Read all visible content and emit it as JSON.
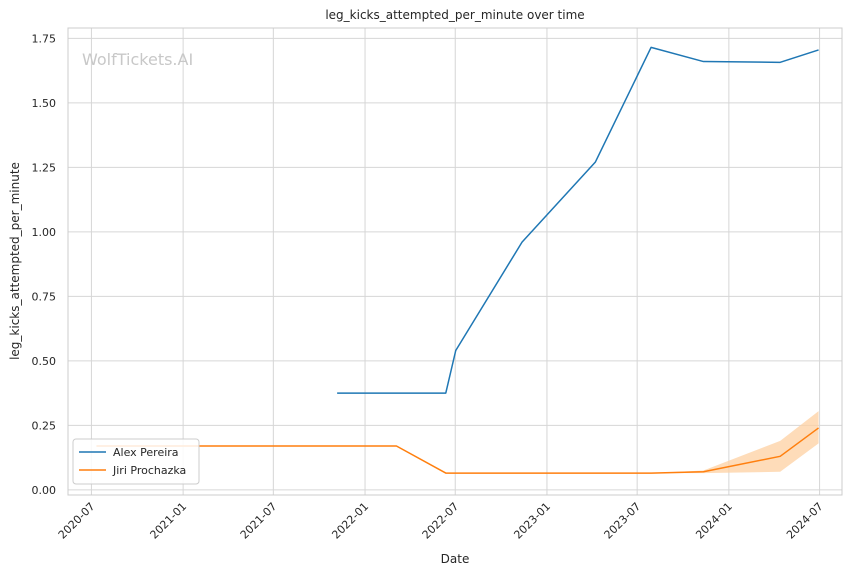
{
  "chart_data": {
    "type": "line",
    "title": "leg_kicks_attempted_per_minute over time",
    "xlabel": "Date",
    "ylabel": "leg_kicks_attempted_per_minute",
    "watermark": "WolfTickets.AI",
    "xlim": [
      "2020-05-15",
      "2024-08-15"
    ],
    "ylim": [
      -0.02,
      1.79
    ],
    "x_ticks": [
      "2020-07-01",
      "2021-01-01",
      "2021-07-01",
      "2022-01-01",
      "2022-07-01",
      "2023-01-01",
      "2023-07-01",
      "2024-01-01",
      "2024-07-01"
    ],
    "x_tick_labels": [
      "2020-07",
      "2021-01",
      "2021-07",
      "2022-01",
      "2022-07",
      "2023-01",
      "2023-07",
      "2024-01",
      "2024-07"
    ],
    "y_ticks": [
      0.0,
      0.25,
      0.5,
      0.75,
      1.0,
      1.25,
      1.5,
      1.75
    ],
    "y_tick_labels": [
      "0.00",
      "0.25",
      "0.50",
      "0.75",
      "1.00",
      "1.25",
      "1.50",
      "1.75"
    ],
    "grid": true,
    "legend_position": "lower-left",
    "series": [
      {
        "name": "Alex Pereira",
        "color": "#1f77b4",
        "points": [
          {
            "x": "2021-11-06",
            "y": 0.375
          },
          {
            "x": "2022-06-12",
            "y": 0.375
          },
          {
            "x": "2022-07-02",
            "y": 0.54
          },
          {
            "x": "2022-11-12",
            "y": 0.96
          },
          {
            "x": "2023-04-08",
            "y": 1.27
          },
          {
            "x": "2023-07-29",
            "y": 1.715
          },
          {
            "x": "2023-11-11",
            "y": 1.66
          },
          {
            "x": "2024-04-13",
            "y": 1.657
          },
          {
            "x": "2024-06-29",
            "y": 1.705
          }
        ]
      },
      {
        "name": "Jiri Prochazka",
        "color": "#ff7f0e",
        "band_color": "#fdd0a2",
        "points": [
          {
            "x": "2020-07-11",
            "y": 0.17
          },
          {
            "x": "2022-03-05",
            "y": 0.17
          },
          {
            "x": "2022-06-12",
            "y": 0.065
          },
          {
            "x": "2023-07-29",
            "y": 0.065
          },
          {
            "x": "2023-11-11",
            "y": 0.07
          },
          {
            "x": "2024-04-13",
            "y": 0.13
          },
          {
            "x": "2024-06-29",
            "y": 0.24
          }
        ],
        "band": [
          {
            "x": "2023-07-29",
            "lo": 0.065,
            "hi": 0.065
          },
          {
            "x": "2023-11-11",
            "lo": 0.065,
            "hi": 0.075
          },
          {
            "x": "2024-04-13",
            "lo": 0.07,
            "hi": 0.19
          },
          {
            "x": "2024-06-29",
            "lo": 0.18,
            "hi": 0.305
          }
        ]
      }
    ]
  }
}
